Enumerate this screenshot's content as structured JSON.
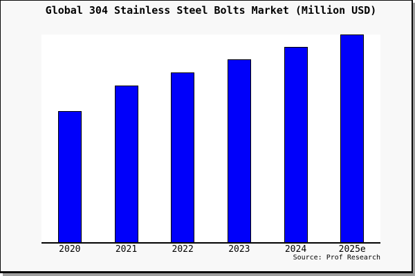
{
  "window": {
    "background": "#f8f8f8",
    "plot_background": "#ffffff",
    "frame_border_color": "#0a0a0a",
    "shadow_color": "#9e9e9e",
    "text_color": "#000000"
  },
  "chart_data": {
    "type": "bar",
    "title": "Global 304 Stainless Steel Bolts Market (Million USD)",
    "categories": [
      "2020",
      "2021",
      "2022",
      "2023",
      "2024",
      "2025e"
    ],
    "values": [
      63,
      75.3,
      81.7,
      88,
      94,
      100
    ],
    "values_note": "no y-axis ticks or data labels are shown; values are relative heights with 2025e = 100",
    "ylim": [
      0,
      100
    ],
    "xlabel": "",
    "ylabel": "",
    "grid": false,
    "legend": false,
    "bar_color": "#0000fa",
    "bar_border_color": "#000000",
    "source": "Source: Prof Research"
  }
}
